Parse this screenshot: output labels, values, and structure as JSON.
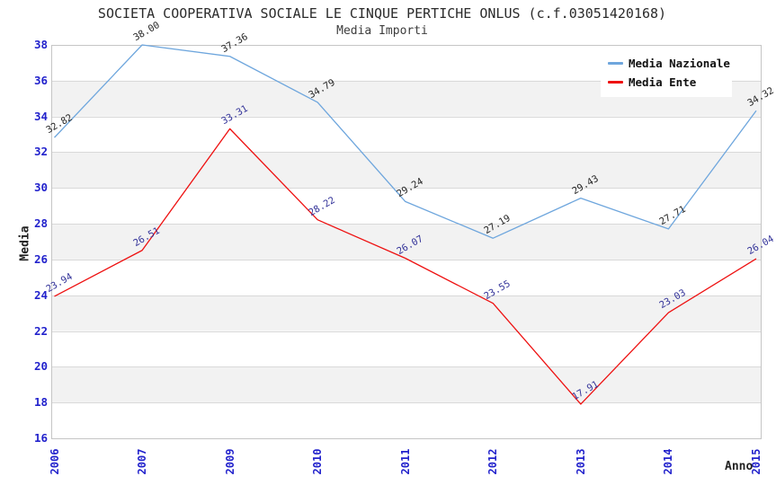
{
  "title": "SOCIETA COOPERATIVA SOCIALE LE CINQUE PERTICHE ONLUS (c.f.03051420168)",
  "subtitle": "Media Importi",
  "axes": {
    "ylabel": "Media",
    "xlabel": "Anno",
    "tick_label_color": "#2222cc",
    "yticks": [
      38,
      36,
      34,
      32,
      30,
      28,
      26,
      24,
      22,
      20,
      18,
      16
    ]
  },
  "legend": {
    "position": "top-right",
    "items": [
      {
        "label": "Media Nazionale",
        "color": "#6ea6dd"
      },
      {
        "label": "Media Ente",
        "color": "#ee1111"
      }
    ]
  },
  "chart_data": {
    "type": "line",
    "title": "SOCIETA COOPERATIVA SOCIALE LE CINQUE PERTICHE ONLUS (c.f.03051420168)",
    "subtitle": "Media Importi",
    "xlabel": "Anno",
    "ylabel": "Media",
    "x": [
      "2006",
      "2007",
      "2009",
      "2010",
      "2011",
      "2012",
      "2013",
      "2014",
      "2015"
    ],
    "series": [
      {
        "name": "Media Nazionale",
        "color": "#6ea6dd",
        "label_color": "#252525",
        "values": [
          32.82,
          38.0,
          37.36,
          34.79,
          29.24,
          27.19,
          29.43,
          27.71,
          34.32
        ]
      },
      {
        "name": "Media Ente",
        "color": "#ee1111",
        "label_color": "#333399",
        "values": [
          23.94,
          26.51,
          33.31,
          28.22,
          26.07,
          23.55,
          17.91,
          23.03,
          26.04
        ]
      }
    ],
    "ylim": [
      16,
      38
    ],
    "ytick_step": 2,
    "grid": "horizontal-bands",
    "band_color": "#f2f2f2",
    "gridline_color": "#d9d9d9",
    "plot_border_color": "#c5c5c5",
    "legend_position": "top-right"
  }
}
